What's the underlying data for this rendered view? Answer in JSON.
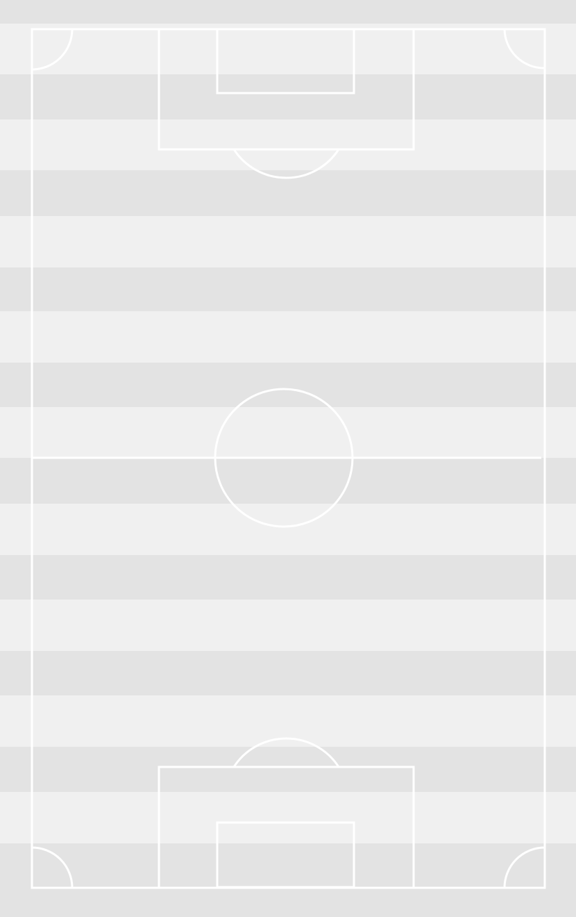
{
  "pitch": {
    "colors": {
      "stripe_light": "#f0f0f0",
      "stripe_dark": "#e3e3e3",
      "lines": "#ffffff"
    },
    "stripe_count": 19
  }
}
